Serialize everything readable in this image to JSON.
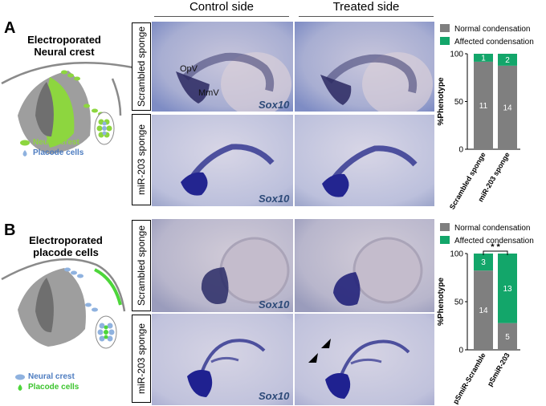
{
  "header": {
    "control_side": "Control side",
    "treated_side": "Treated side"
  },
  "colors": {
    "normal": "#7f7f7f",
    "affected": "#13a66a",
    "neural_crest": "#8dd63f",
    "placode": "#8fb2df",
    "stain": "#2b2f8a"
  },
  "panel_a": {
    "letter": "A",
    "diagram_title_1": "Electroporated",
    "diagram_title_2": "Neural crest",
    "key_neural_crest": "Neural crest",
    "key_placode": "Placode cells",
    "row1_label": "Scrambled sponge",
    "row2_label": "miR-203 sponge",
    "label_opv": "OpV",
    "label_mmv": "MmV",
    "stain": "Sox10"
  },
  "panel_b": {
    "letter": "B",
    "diagram_title_1": "Electroporated",
    "diagram_title_2": "placode cells",
    "key_neural_crest": "Neural crest",
    "key_placode": "Placode cells",
    "row1_label": "Scrambled sponge",
    "row2_label": "miR-203 sponge",
    "stain": "Sox10",
    "significance": "* *"
  },
  "chart_data": [
    {
      "type": "bar",
      "stacked": true,
      "categories": [
        "Scrambled sponge",
        "miR-203 sponge"
      ],
      "series": [
        {
          "name": "Normal condensation",
          "values": [
            11,
            14
          ]
        },
        {
          "name": "Affected condensation",
          "values": [
            1,
            2
          ]
        }
      ],
      "ylabel": "%Phenotype",
      "ylim": [
        0,
        100
      ],
      "yticks": [
        0,
        50,
        100
      ],
      "legend": "top"
    },
    {
      "type": "bar",
      "stacked": true,
      "categories": [
        "pSmiR-Scramble",
        "pSmiR-203"
      ],
      "series": [
        {
          "name": "Normal condensation",
          "values": [
            14,
            5
          ]
        },
        {
          "name": "Affected condensation",
          "values": [
            3,
            13
          ]
        }
      ],
      "ylabel": "%Phenotype",
      "ylim": [
        0,
        100
      ],
      "yticks": [
        0,
        50,
        100
      ],
      "legend": "top",
      "annotation": "* *"
    }
  ]
}
